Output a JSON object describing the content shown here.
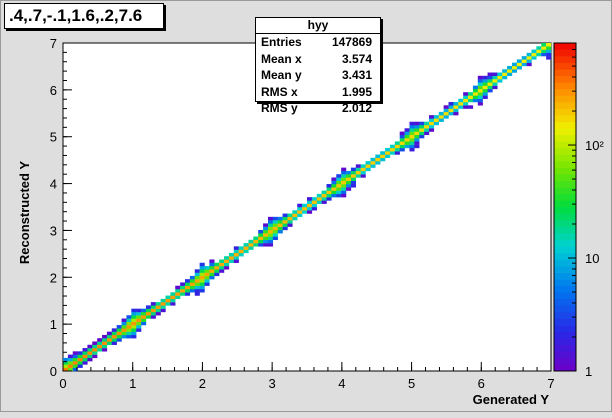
{
  "title": ".4,.7,-.1,1.6,.2,7.6",
  "stats": {
    "name": "hyy",
    "rows": [
      {
        "label": "Entries",
        "value": "147869"
      },
      {
        "label": "Mean x",
        "value": "3.574"
      },
      {
        "label": "Mean y",
        "value": "3.431"
      },
      {
        "label": "RMS x",
        "value": "1.995"
      },
      {
        "label": "RMS y",
        "value": "2.012"
      }
    ]
  },
  "chart_data": {
    "type": "heatmap",
    "title": ".4,.7,-.1,1.6,.2,7.6",
    "xlabel": "Generated Y",
    "ylabel": "Reconstructed Y",
    "xlim": [
      0,
      7
    ],
    "ylim": [
      0,
      7
    ],
    "xticks": [
      0,
      1,
      2,
      3,
      4,
      5,
      6,
      7
    ],
    "yticks": [
      0,
      1,
      2,
      3,
      4,
      5,
      6,
      7
    ],
    "colorbar": {
      "scale": "log",
      "range": [
        1,
        800
      ],
      "tick_labels": [
        "1",
        "10",
        "10²"
      ],
      "tick_values": [
        1,
        10,
        100
      ]
    },
    "distribution": "2D histogram concentrated along diagonal y = x, broader spread near segment boundaries (~1, 2, 3, 4, 5, 6), peak counts at low Y",
    "entries": 147869
  }
}
